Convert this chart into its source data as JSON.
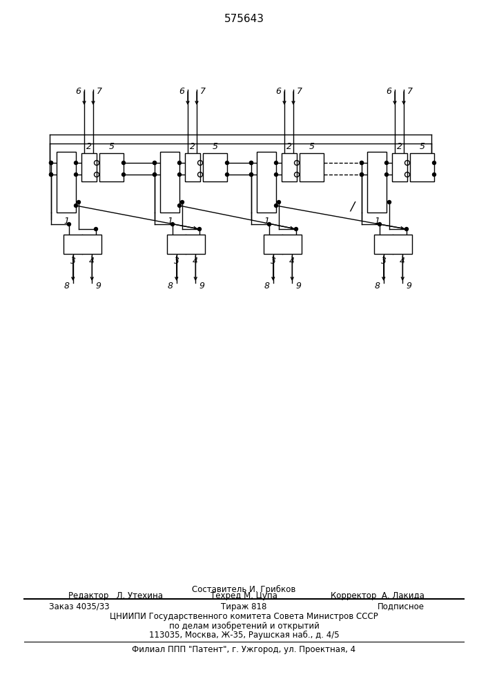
{
  "title": "575643",
  "bg_color": "#ffffff",
  "line_color": "#000000",
  "footer": {
    "line1": "Составитель И. Грибков",
    "line2_left": "Редактор   Л. Утехина",
    "line2_mid": "Техред М. Цупа",
    "line2_right": "Корректор  А. Лакида",
    "line3_left": "Заказ 4035/33",
    "line3_mid": "Тираж 818",
    "line3_right": "Подписное",
    "line4": "ЦНИИПИ Государственного комитета Совета Министров СССР",
    "line5": "по делам изобретений и открытий",
    "line6": "113035, Москва, Ж-35, Раушская наб., д. 4/5",
    "line7": "Филиал ППП \"Патент\", г. Ужгород, ул. Проектная, 4"
  }
}
